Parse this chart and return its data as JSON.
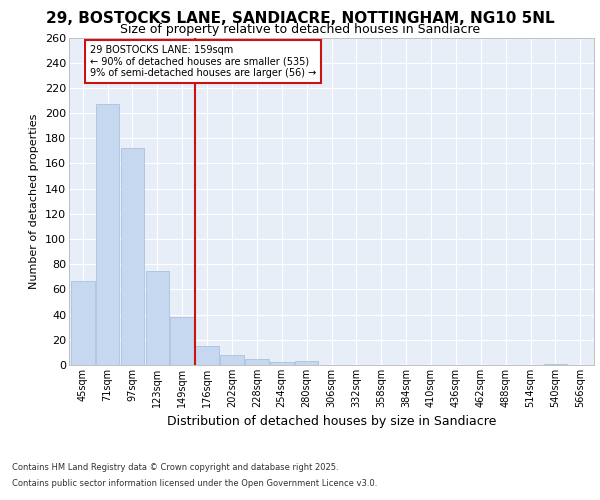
{
  "title_line1": "29, BOSTOCKS LANE, SANDIACRE, NOTTINGHAM, NG10 5NL",
  "title_line2": "Size of property relative to detached houses in Sandiacre",
  "xlabel": "Distribution of detached houses by size in Sandiacre",
  "ylabel": "Number of detached properties",
  "bin_labels": [
    "45sqm",
    "71sqm",
    "97sqm",
    "123sqm",
    "149sqm",
    "176sqm",
    "202sqm",
    "228sqm",
    "254sqm",
    "280sqm",
    "306sqm",
    "332sqm",
    "358sqm",
    "384sqm",
    "410sqm",
    "436sqm",
    "462sqm",
    "488sqm",
    "514sqm",
    "540sqm",
    "566sqm"
  ],
  "bar_values": [
    67,
    207,
    172,
    75,
    38,
    15,
    8,
    5,
    2,
    3,
    0,
    0,
    0,
    0,
    0,
    0,
    0,
    0,
    0,
    1,
    0
  ],
  "bar_color": "#c5d8f0",
  "bar_edge_color": "#a0bcd8",
  "red_line_x": 4.5,
  "annotation_title": "29 BOSTOCKS LANE: 159sqm",
  "annotation_line2": "← 90% of detached houses are smaller (535)",
  "annotation_line3": "9% of semi-detached houses are larger (56) →",
  "red_color": "#cc1111",
  "ylim": [
    0,
    260
  ],
  "yticks": [
    0,
    20,
    40,
    60,
    80,
    100,
    120,
    140,
    160,
    180,
    200,
    220,
    240,
    260
  ],
  "footer_line1": "Contains HM Land Registry data © Crown copyright and database right 2025.",
  "footer_line2": "Contains public sector information licensed under the Open Government Licence v3.0.",
  "fig_bg": "#ffffff",
  "plot_bg": "#e8eef8",
  "grid_color": "#ffffff",
  "title1_fontsize": 11,
  "title2_fontsize": 9,
  "ylabel_fontsize": 8,
  "xlabel_fontsize": 9,
  "ytick_fontsize": 8,
  "xtick_fontsize": 7,
  "footer_fontsize": 6
}
